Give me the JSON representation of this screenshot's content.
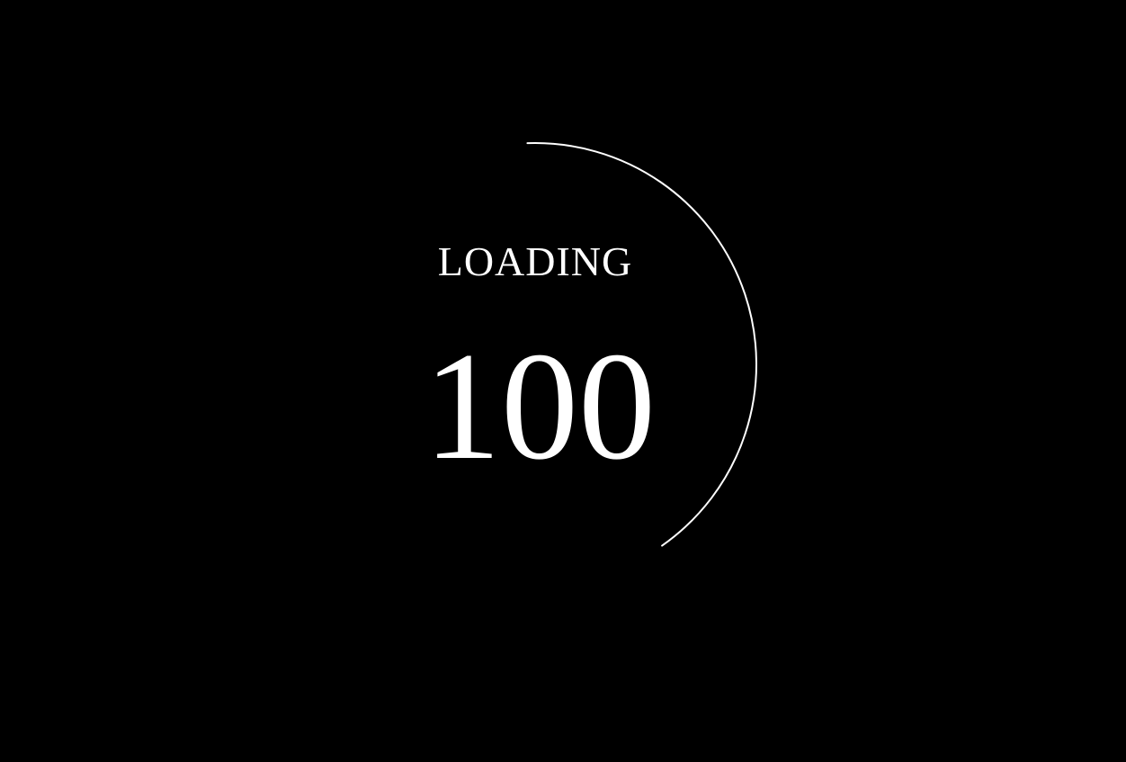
{
  "loader": {
    "label": "LOADING",
    "value_text": "100",
    "progress_percent": 100,
    "arc_start_deg": -2,
    "arc_end_deg": 145
  },
  "colors": {
    "background": "#000000",
    "foreground": "#ffffff"
  }
}
